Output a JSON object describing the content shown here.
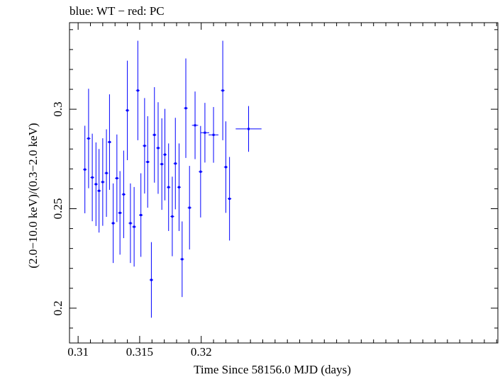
{
  "chart_data": {
    "type": "scatter",
    "title": "blue: WT − red: PC",
    "xlabel": "Time Since 58156.0 MJD (days)",
    "ylabel": "(2.0−10.0 keV)/(0.3−2.0 keV)",
    "xlim": [
      0.3093,
      0.3441
    ],
    "ylim": [
      0.1825,
      0.3435
    ],
    "x_ticks": [
      0.31,
      0.315,
      0.32
    ],
    "x_tick_labels": [
      "0.31",
      "0.315",
      "0.32"
    ],
    "y_ticks": [
      0.2,
      0.25,
      0.3
    ],
    "y_tick_labels": [
      "0.2",
      "0.25",
      "0.3"
    ],
    "grid": false,
    "series": [
      {
        "color": "#0000ff",
        "points": [
          {
            "x": 0.31055,
            "y": 0.2697,
            "xerr": 0.00015,
            "yerr": 0.022
          },
          {
            "x": 0.31085,
            "y": 0.2853,
            "xerr": 0.00015,
            "yerr": 0.025
          },
          {
            "x": 0.31115,
            "y": 0.2657,
            "xerr": 0.00015,
            "yerr": 0.022
          },
          {
            "x": 0.31145,
            "y": 0.2623,
            "xerr": 0.00015,
            "yerr": 0.021
          },
          {
            "x": 0.3117,
            "y": 0.259,
            "xerr": 0.00015,
            "yerr": 0.021
          },
          {
            "x": 0.312,
            "y": 0.2634,
            "xerr": 0.00015,
            "yerr": 0.022
          },
          {
            "x": 0.3123,
            "y": 0.2679,
            "xerr": 0.00015,
            "yerr": 0.022
          },
          {
            "x": 0.31255,
            "y": 0.2835,
            "xerr": 0.00015,
            "yerr": 0.024
          },
          {
            "x": 0.31285,
            "y": 0.2427,
            "xerr": 0.00015,
            "yerr": 0.02
          },
          {
            "x": 0.31315,
            "y": 0.2653,
            "xerr": 0.00015,
            "yerr": 0.022
          },
          {
            "x": 0.3134,
            "y": 0.2479,
            "xerr": 0.00015,
            "yerr": 0.021
          },
          {
            "x": 0.3137,
            "y": 0.2572,
            "xerr": 0.00015,
            "yerr": 0.022
          },
          {
            "x": 0.314,
            "y": 0.2994,
            "xerr": 0.00015,
            "yerr": 0.025
          },
          {
            "x": 0.31425,
            "y": 0.2427,
            "xerr": 0.00015,
            "yerr": 0.02
          },
          {
            "x": 0.31455,
            "y": 0.2409,
            "xerr": 0.00015,
            "yerr": 0.02
          },
          {
            "x": 0.31485,
            "y": 0.3094,
            "xerr": 0.00015,
            "yerr": 0.025
          },
          {
            "x": 0.3151,
            "y": 0.2468,
            "xerr": 0.00015,
            "yerr": 0.021
          },
          {
            "x": 0.3154,
            "y": 0.2816,
            "xerr": 0.00015,
            "yerr": 0.024
          },
          {
            "x": 0.31565,
            "y": 0.2735,
            "xerr": 0.00015,
            "yerr": 0.023
          },
          {
            "x": 0.31595,
            "y": 0.2142,
            "xerr": 0.00015,
            "yerr": 0.019
          },
          {
            "x": 0.3162,
            "y": 0.2871,
            "xerr": 0.00015,
            "yerr": 0.024
          },
          {
            "x": 0.3165,
            "y": 0.2805,
            "xerr": 0.00015,
            "yerr": 0.023
          },
          {
            "x": 0.3168,
            "y": 0.2724,
            "xerr": 0.00015,
            "yerr": 0.023
          },
          {
            "x": 0.31705,
            "y": 0.2772,
            "xerr": 0.00015,
            "yerr": 0.023
          },
          {
            "x": 0.31735,
            "y": 0.2608,
            "xerr": 0.00015,
            "yerr": 0.022
          },
          {
            "x": 0.31765,
            "y": 0.2461,
            "xerr": 0.00015,
            "yerr": 0.02
          },
          {
            "x": 0.3179,
            "y": 0.2727,
            "xerr": 0.00015,
            "yerr": 0.023
          },
          {
            "x": 0.3182,
            "y": 0.2608,
            "xerr": 0.00015,
            "yerr": 0.022
          },
          {
            "x": 0.31845,
            "y": 0.2246,
            "xerr": 0.00015,
            "yerr": 0.019
          },
          {
            "x": 0.31875,
            "y": 0.3005,
            "xerr": 0.00015,
            "yerr": 0.025
          },
          {
            "x": 0.31905,
            "y": 0.2505,
            "xerr": 0.00015,
            "yerr": 0.021
          },
          {
            "x": 0.3195,
            "y": 0.2919,
            "xerr": 0.00025,
            "yerr": 0.017
          },
          {
            "x": 0.31995,
            "y": 0.2686,
            "xerr": 0.00015,
            "yerr": 0.023
          },
          {
            "x": 0.3203,
            "y": 0.2882,
            "xerr": 0.00035,
            "yerr": 0.015
          },
          {
            "x": 0.321,
            "y": 0.2871,
            "xerr": 0.0004,
            "yerr": 0.014
          },
          {
            "x": 0.32175,
            "y": 0.3094,
            "xerr": 0.00015,
            "yerr": 0.025
          },
          {
            "x": 0.322,
            "y": 0.2709,
            "xerr": 0.00015,
            "yerr": 0.023
          },
          {
            "x": 0.3223,
            "y": 0.255,
            "xerr": 0.00015,
            "yerr": 0.021
          },
          {
            "x": 0.32385,
            "y": 0.2901,
            "xerr": 0.00105,
            "yerr": 0.0115
          }
        ]
      }
    ]
  }
}
